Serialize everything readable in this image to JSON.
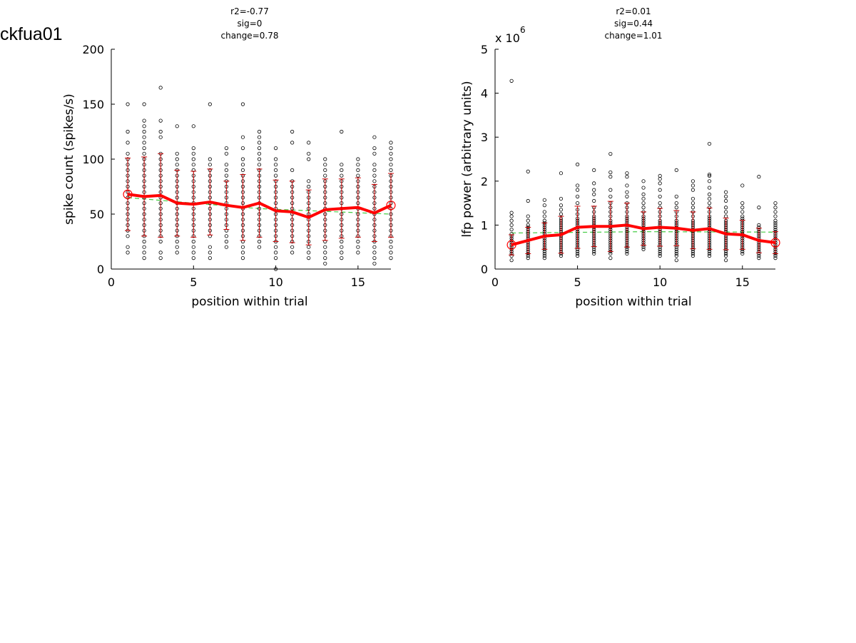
{
  "page_title": "ckfua01",
  "chart_data": [
    {
      "type": "scatter",
      "stats": [
        "r2=-0.77",
        "sig=0",
        "change=0.78"
      ],
      "xlabel": "position within trial",
      "ylabel": "spike count (spikes/s)",
      "xlim": [
        0,
        17
      ],
      "ylim": [
        0,
        200
      ],
      "xticks": [
        0,
        5,
        10,
        15
      ],
      "yticks": [
        0,
        50,
        100,
        150,
        200
      ],
      "axis_multiplier": "",
      "colors": {
        "points": "#000000",
        "mean": "#ff0000",
        "errorbar": "#cc0000",
        "fit": "#44cc44"
      },
      "grid": false,
      "trial_points": [
        {
          "x": 1,
          "y": [
            15,
            20,
            30,
            35,
            40,
            45,
            50,
            55,
            60,
            65,
            70,
            75,
            80,
            85,
            90,
            95,
            100,
            105,
            115,
            125,
            150
          ]
        },
        {
          "x": 2,
          "y": [
            10,
            15,
            20,
            25,
            30,
            35,
            40,
            45,
            50,
            55,
            60,
            65,
            70,
            75,
            80,
            85,
            90,
            95,
            100,
            105,
            110,
            115,
            120,
            125,
            130,
            135,
            150
          ]
        },
        {
          "x": 3,
          "y": [
            10,
            15,
            25,
            30,
            35,
            40,
            45,
            50,
            55,
            60,
            65,
            70,
            75,
            80,
            85,
            90,
            95,
            100,
            105,
            120,
            125,
            135,
            165
          ]
        },
        {
          "x": 4,
          "y": [
            15,
            20,
            25,
            30,
            35,
            40,
            45,
            50,
            55,
            60,
            65,
            70,
            75,
            80,
            85,
            90,
            95,
            100,
            105,
            130
          ]
        },
        {
          "x": 5,
          "y": [
            10,
            15,
            20,
            25,
            30,
            35,
            40,
            45,
            50,
            55,
            60,
            65,
            70,
            75,
            80,
            85,
            90,
            95,
            100,
            105,
            110,
            130
          ]
        },
        {
          "x": 6,
          "y": [
            10,
            15,
            20,
            30,
            35,
            40,
            45,
            50,
            55,
            60,
            65,
            70,
            75,
            80,
            85,
            90,
            95,
            100,
            150
          ]
        },
        {
          "x": 7,
          "y": [
            20,
            25,
            30,
            35,
            40,
            45,
            50,
            55,
            60,
            65,
            70,
            75,
            80,
            85,
            90,
            95,
            105,
            110
          ]
        },
        {
          "x": 8,
          "y": [
            10,
            15,
            20,
            25,
            30,
            35,
            40,
            45,
            50,
            55,
            60,
            65,
            70,
            75,
            80,
            85,
            90,
            95,
            100,
            110,
            120,
            150
          ]
        },
        {
          "x": 9,
          "y": [
            20,
            25,
            30,
            35,
            40,
            45,
            50,
            55,
            60,
            65,
            70,
            75,
            80,
            85,
            90,
            95,
            100,
            105,
            110,
            115,
            120,
            125
          ]
        },
        {
          "x": 10,
          "y": [
            0,
            10,
            15,
            20,
            25,
            30,
            35,
            40,
            45,
            50,
            55,
            60,
            65,
            70,
            75,
            80,
            85,
            90,
            95,
            100,
            110
          ]
        },
        {
          "x": 11,
          "y": [
            15,
            20,
            25,
            30,
            35,
            40,
            45,
            50,
            55,
            60,
            65,
            70,
            75,
            80,
            90,
            115,
            125
          ]
        },
        {
          "x": 12,
          "y": [
            10,
            15,
            20,
            25,
            30,
            35,
            40,
            45,
            50,
            55,
            60,
            65,
            70,
            75,
            80,
            100,
            105,
            115
          ]
        },
        {
          "x": 13,
          "y": [
            5,
            10,
            15,
            20,
            25,
            30,
            35,
            40,
            45,
            50,
            55,
            60,
            65,
            70,
            75,
            80,
            85,
            90,
            95,
            100
          ]
        },
        {
          "x": 14,
          "y": [
            10,
            15,
            20,
            25,
            30,
            35,
            40,
            45,
            50,
            55,
            60,
            65,
            70,
            75,
            80,
            85,
            90,
            95,
            125
          ]
        },
        {
          "x": 15,
          "y": [
            15,
            20,
            25,
            30,
            35,
            40,
            45,
            50,
            55,
            60,
            65,
            70,
            75,
            80,
            85,
            90,
            95,
            100
          ]
        },
        {
          "x": 16,
          "y": [
            5,
            10,
            15,
            20,
            25,
            30,
            35,
            40,
            45,
            50,
            55,
            60,
            65,
            70,
            75,
            80,
            85,
            90,
            95,
            105,
            110,
            120
          ]
        },
        {
          "x": 17,
          "y": [
            10,
            15,
            20,
            25,
            30,
            35,
            40,
            45,
            50,
            55,
            60,
            65,
            70,
            75,
            80,
            85,
            90,
            95,
            100,
            105,
            110,
            115
          ]
        }
      ],
      "mean": [
        68,
        66,
        67,
        60,
        59,
        61,
        58,
        56,
        60,
        53,
        52,
        47,
        54,
        55,
        56,
        51,
        58
      ],
      "std": [
        33,
        36,
        38,
        30,
        30,
        30,
        22,
        30,
        31,
        28,
        28,
        25,
        28,
        27,
        27,
        26,
        29
      ],
      "fit": [
        65,
        55,
        50
      ]
    },
    {
      "type": "scatter",
      "stats": [
        "r2=0.01",
        "sig=0.44",
        "change=1.01"
      ],
      "xlabel": "position within trial",
      "ylabel": "lfp power (arbitrary units)",
      "xlim": [
        0,
        17
      ],
      "ylim": [
        0,
        5
      ],
      "xticks": [
        0,
        5,
        10,
        15
      ],
      "yticks": [
        0,
        1,
        2,
        3,
        4,
        5
      ],
      "axis_multiplier": "x 10",
      "axis_multiplier_exponent": "6",
      "colors": {
        "points": "#000000",
        "mean": "#ff0000",
        "errorbar": "#cc0000",
        "fit": "#44cc44"
      },
      "grid": false,
      "trial_points": [
        {
          "x": 1,
          "y": [
            0.2,
            0.3,
            0.35,
            0.4,
            0.45,
            0.5,
            0.55,
            0.6,
            0.65,
            0.7,
            0.75,
            0.8,
            0.9,
            1.0,
            1.1,
            1.2,
            1.28,
            4.28
          ]
        },
        {
          "x": 2,
          "y": [
            0.25,
            0.3,
            0.35,
            0.4,
            0.45,
            0.5,
            0.55,
            0.6,
            0.65,
            0.7,
            0.75,
            0.8,
            0.85,
            0.9,
            0.95,
            1.0,
            1.1,
            1.2,
            1.55,
            2.22
          ]
        },
        {
          "x": 3,
          "y": [
            0.25,
            0.3,
            0.35,
            0.4,
            0.45,
            0.5,
            0.55,
            0.6,
            0.65,
            0.7,
            0.75,
            0.8,
            0.85,
            0.9,
            0.95,
            1.0,
            1.05,
            1.1,
            1.2,
            1.3,
            1.45,
            1.57
          ]
        },
        {
          "x": 4,
          "y": [
            0.3,
            0.35,
            0.4,
            0.45,
            0.5,
            0.55,
            0.6,
            0.65,
            0.7,
            0.75,
            0.8,
            0.85,
            0.9,
            0.95,
            1.0,
            1.05,
            1.1,
            1.15,
            1.25,
            1.35,
            1.45,
            1.6,
            2.18
          ]
        },
        {
          "x": 5,
          "y": [
            0.3,
            0.35,
            0.4,
            0.45,
            0.5,
            0.55,
            0.6,
            0.65,
            0.7,
            0.75,
            0.8,
            0.85,
            0.9,
            0.95,
            1.0,
            1.05,
            1.1,
            1.15,
            1.25,
            1.35,
            1.5,
            1.65,
            1.8,
            1.9,
            2.38
          ]
        },
        {
          "x": 6,
          "y": [
            0.35,
            0.4,
            0.45,
            0.5,
            0.55,
            0.6,
            0.65,
            0.7,
            0.75,
            0.8,
            0.85,
            0.9,
            0.95,
            1.0,
            1.05,
            1.1,
            1.15,
            1.2,
            1.3,
            1.4,
            1.55,
            1.7,
            1.8,
            1.95,
            2.25
          ]
        },
        {
          "x": 7,
          "y": [
            0.25,
            0.35,
            0.4,
            0.45,
            0.5,
            0.55,
            0.6,
            0.65,
            0.7,
            0.75,
            0.8,
            0.85,
            0.9,
            0.95,
            1.0,
            1.05,
            1.1,
            1.2,
            1.3,
            1.4,
            1.5,
            1.65,
            1.8,
            2.1,
            2.2,
            2.62
          ]
        },
        {
          "x": 8,
          "y": [
            0.35,
            0.4,
            0.45,
            0.5,
            0.55,
            0.6,
            0.65,
            0.7,
            0.75,
            0.8,
            0.85,
            0.9,
            0.95,
            1.0,
            1.05,
            1.1,
            1.15,
            1.2,
            1.3,
            1.4,
            1.5,
            1.65,
            1.75,
            1.9,
            2.1,
            2.18
          ]
        },
        {
          "x": 9,
          "y": [
            0.45,
            0.5,
            0.55,
            0.6,
            0.65,
            0.7,
            0.75,
            0.8,
            0.85,
            0.9,
            0.95,
            1.0,
            1.05,
            1.1,
            1.15,
            1.2,
            1.3,
            1.4,
            1.5,
            1.6,
            1.7,
            1.85,
            2.0
          ]
        },
        {
          "x": 10,
          "y": [
            0.3,
            0.35,
            0.4,
            0.45,
            0.5,
            0.55,
            0.6,
            0.65,
            0.7,
            0.75,
            0.8,
            0.85,
            0.9,
            0.95,
            1.0,
            1.05,
            1.1,
            1.2,
            1.3,
            1.4,
            1.5,
            1.65,
            1.8,
            1.95,
            2.05,
            2.12
          ]
        },
        {
          "x": 11,
          "y": [
            0.2,
            0.3,
            0.35,
            0.4,
            0.45,
            0.5,
            0.55,
            0.6,
            0.65,
            0.7,
            0.75,
            0.8,
            0.85,
            0.9,
            0.95,
            1.0,
            1.05,
            1.1,
            1.2,
            1.3,
            1.4,
            1.5,
            1.65,
            2.25
          ]
        },
        {
          "x": 12,
          "y": [
            0.3,
            0.35,
            0.4,
            0.45,
            0.5,
            0.55,
            0.6,
            0.65,
            0.7,
            0.75,
            0.8,
            0.85,
            0.9,
            0.95,
            1.0,
            1.05,
            1.1,
            1.2,
            1.3,
            1.4,
            1.5,
            1.6,
            1.8,
            1.9,
            2.0
          ]
        },
        {
          "x": 13,
          "y": [
            0.3,
            0.35,
            0.4,
            0.45,
            0.5,
            0.55,
            0.6,
            0.65,
            0.7,
            0.75,
            0.8,
            0.85,
            0.9,
            0.95,
            1.0,
            1.05,
            1.1,
            1.15,
            1.2,
            1.3,
            1.4,
            1.5,
            1.6,
            1.7,
            1.85,
            2.0,
            2.12,
            2.15,
            2.85
          ]
        },
        {
          "x": 14,
          "y": [
            0.2,
            0.3,
            0.35,
            0.4,
            0.45,
            0.5,
            0.55,
            0.6,
            0.65,
            0.7,
            0.75,
            0.8,
            0.85,
            0.9,
            0.95,
            1.0,
            1.05,
            1.1,
            1.2,
            1.3,
            1.4,
            1.55,
            1.65,
            1.75
          ]
        },
        {
          "x": 15,
          "y": [
            0.35,
            0.4,
            0.45,
            0.5,
            0.55,
            0.6,
            0.65,
            0.7,
            0.75,
            0.8,
            0.85,
            0.9,
            0.95,
            1.0,
            1.05,
            1.1,
            1.15,
            1.2,
            1.3,
            1.4,
            1.5,
            1.9
          ]
        },
        {
          "x": 16,
          "y": [
            0.25,
            0.3,
            0.35,
            0.4,
            0.45,
            0.5,
            0.55,
            0.6,
            0.65,
            0.7,
            0.75,
            0.8,
            0.85,
            0.9,
            0.95,
            1.0,
            1.4,
            2.1
          ]
        },
        {
          "x": 17,
          "y": [
            0.25,
            0.3,
            0.35,
            0.4,
            0.45,
            0.5,
            0.55,
            0.6,
            0.65,
            0.7,
            0.75,
            0.8,
            0.85,
            0.9,
            0.95,
            1.0,
            1.05,
            1.1,
            1.2,
            1.3,
            1.4,
            1.5
          ]
        }
      ],
      "mean": [
        0.55,
        0.65,
        0.75,
        0.78,
        0.95,
        0.97,
        0.97,
        1.0,
        0.92,
        0.95,
        0.93,
        0.88,
        0.92,
        0.8,
        0.78,
        0.65,
        0.6
      ],
      "std": [
        0.23,
        0.3,
        0.3,
        0.42,
        0.48,
        0.46,
        0.57,
        0.5,
        0.38,
        0.43,
        0.4,
        0.42,
        0.47,
        0.36,
        0.33,
        0.28,
        0.25
      ],
      "fit": [
        0.82,
        0.85,
        0.84
      ]
    }
  ]
}
